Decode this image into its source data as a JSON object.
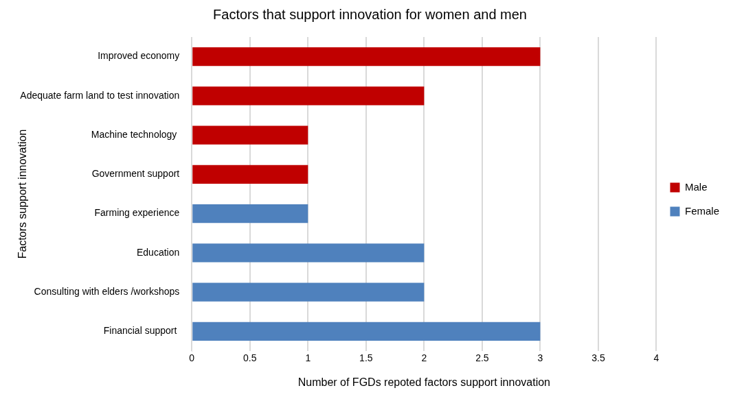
{
  "chart_data": {
    "type": "bar",
    "orientation": "horizontal",
    "stacked": true,
    "title": "Factors that support innovation for women and men",
    "xlabel": "Number of FGDs repoted factors support innovation",
    "ylabel": "Factors support innovation",
    "categories": [
      "Improved economy",
      "Adequate farm land to test innovation",
      "Machine technology ",
      "Government support",
      "Farming experience",
      "Education",
      "Consulting with elders /workshops",
      "Financial support "
    ],
    "series": [
      {
        "name": "Male",
        "color": "#c00000",
        "values": [
          3,
          2,
          1,
          1,
          null,
          null,
          null,
          null
        ]
      },
      {
        "name": "Female",
        "color": "#4f81bd",
        "values": [
          null,
          null,
          null,
          null,
          1,
          2,
          2,
          3
        ]
      }
    ],
    "xlim": [
      0,
      4
    ],
    "xticks": [
      0,
      0.5,
      1,
      1.5,
      2,
      2.5,
      3,
      3.5,
      4
    ],
    "grid": "x",
    "legend": "right"
  }
}
